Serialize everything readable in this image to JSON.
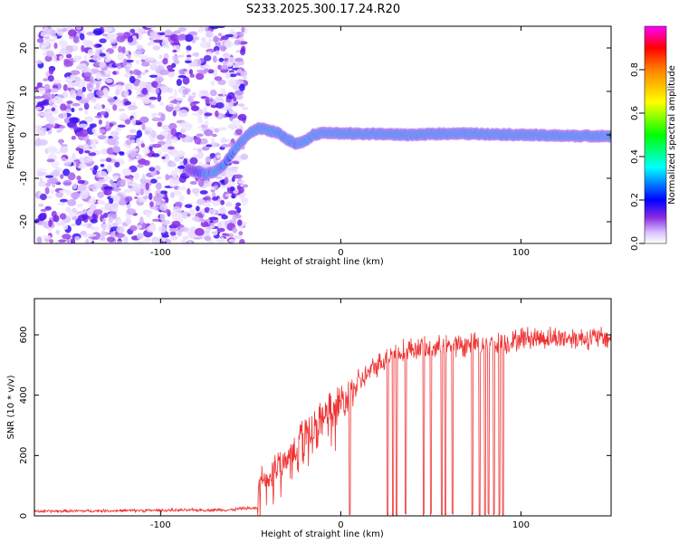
{
  "title": "S233.2025.300.17.24.R20",
  "colors": {
    "snr_line": "#ee3333",
    "axis": "#000000",
    "bg": "#ffffff"
  },
  "chart_data": [
    {
      "type": "heatmap",
      "name": "spectrogram",
      "xlabel": "Height of straight line (km)",
      "ylabel": "Frequency (Hz)",
      "xlim": [
        -170,
        150
      ],
      "ylim": [
        -25,
        25
      ],
      "xticks": [
        -100,
        0,
        100
      ],
      "xtick_labels": [
        "-100",
        "0",
        "100"
      ],
      "yticks": [
        -20,
        -10,
        0,
        10,
        20
      ],
      "ytick_labels": [
        "-20",
        "-10",
        "0",
        "10",
        "20"
      ],
      "colorbar": {
        "label": "Normalized spectral amplitude",
        "range": [
          0,
          1
        ],
        "ticks": [
          0.0,
          0.2,
          0.4,
          0.6,
          0.8
        ],
        "tick_labels": [
          "0.0",
          "0.2",
          "0.4",
          "0.6",
          "0.8"
        ]
      },
      "noise_region_x": [
        -170,
        -55
      ],
      "ridge": {
        "x": [
          -85,
          -80,
          -75,
          -70,
          -65,
          -60,
          -55,
          -50,
          -45,
          -40,
          -35,
          -30,
          -25,
          -20,
          -15,
          -10,
          -5,
          0,
          20,
          40,
          60,
          80,
          100,
          120,
          150
        ],
        "y": [
          -8,
          -8.5,
          -9,
          -8.5,
          -7,
          -4,
          -1.5,
          0.5,
          1.5,
          1,
          0.5,
          -1,
          -2,
          -1.5,
          0,
          0.5,
          0.5,
          0.3,
          0.2,
          0,
          0.3,
          0.2,
          0,
          -0.2,
          -0.3
        ],
        "amp": [
          0.15,
          0.2,
          0.3,
          0.35,
          0.3,
          0.3,
          0.35,
          0.4,
          0.5,
          0.5,
          0.4,
          0.35,
          0.35,
          0.4,
          0.6,
          0.75,
          0.85,
          0.9,
          0.95,
          0.95,
          0.9,
          0.95,
          0.95,
          0.95,
          0.9
        ]
      }
    },
    {
      "type": "line",
      "name": "snr",
      "xlabel": "Height of straight line (km)",
      "ylabel": "SNR (10 * v/v)",
      "xlim": [
        -170,
        150
      ],
      "ylim": [
        0,
        720
      ],
      "xticks": [
        -100,
        0,
        100
      ],
      "xtick_labels": [
        "-100",
        "0",
        "100"
      ],
      "yticks": [
        0,
        200,
        400,
        600
      ],
      "ytick_labels": [
        "0",
        "200",
        "400",
        "600"
      ],
      "envelope": {
        "x": [
          -170,
          -60,
          -55,
          -46,
          -45,
          -40,
          -30,
          -20,
          -10,
          0,
          10,
          20,
          30,
          40,
          60,
          80,
          95,
          100,
          120,
          150
        ],
        "y": [
          15,
          20,
          25,
          25,
          100,
          130,
          200,
          270,
          330,
          380,
          440,
          500,
          540,
          555,
          560,
          570,
          575,
          590,
          590,
          590
        ]
      },
      "dropouts_x": [
        5,
        26,
        29,
        31,
        36,
        46,
        50,
        56,
        58,
        62,
        73,
        77,
        80,
        82,
        85,
        88,
        90
      ]
    }
  ]
}
